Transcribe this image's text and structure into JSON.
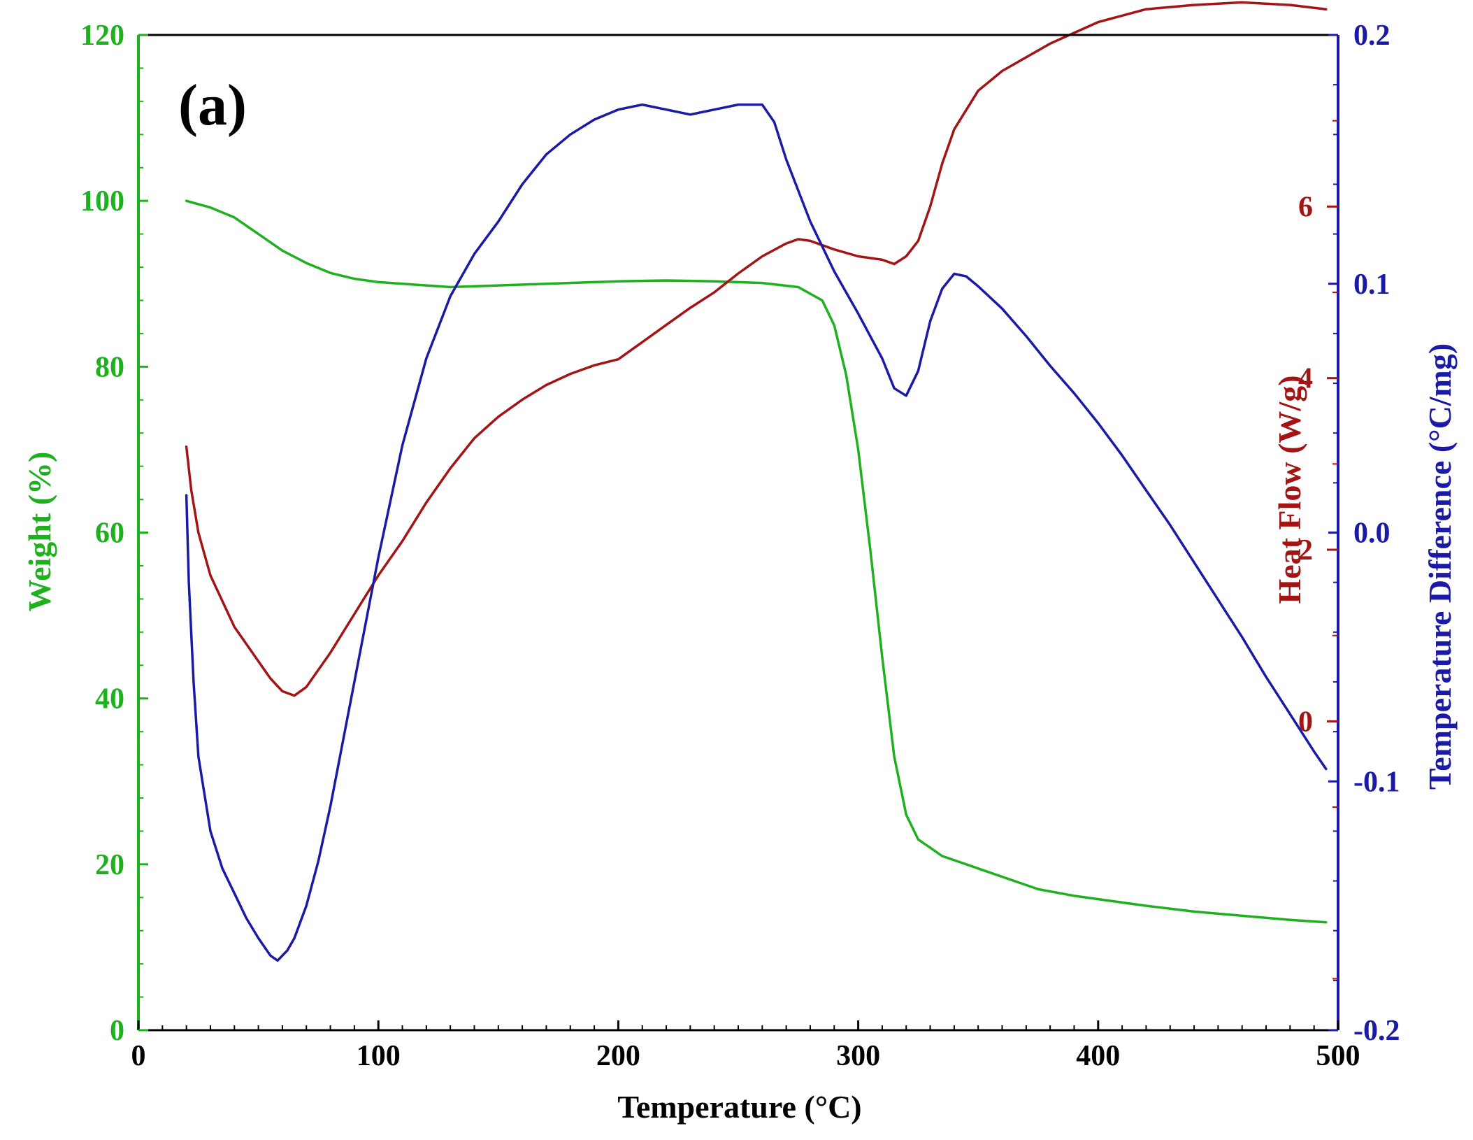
{
  "chart_data": {
    "type": "line",
    "panel_label": "(a)",
    "xlabel": "Temperature (°C)",
    "xlim": [
      0,
      500
    ],
    "x_ticks": [
      "0",
      "100",
      "200",
      "300",
      "400",
      "500"
    ],
    "grid": false,
    "colors": {
      "weight": "#1fb01f",
      "heat_flow": "#a31515",
      "temp_diff": "#1a1aa6",
      "frame": "#000000"
    },
    "axes": {
      "weight": {
        "label": "Weight (%)",
        "side": "left",
        "ylim": [
          0,
          120
        ],
        "ticks": [
          "0",
          "20",
          "40",
          "60",
          "80",
          "100",
          "120"
        ]
      },
      "heat_flow": {
        "label": "Heat Flow (W/g)",
        "side": "right-inner",
        "ylim": [
          -3.6,
          8.0
        ],
        "ticks": [
          "0",
          "2",
          "4",
          "6"
        ]
      },
      "temp_diff": {
        "label": "Temperature Difference (°C/mg)",
        "side": "right",
        "ylim": [
          -0.2,
          0.2
        ],
        "ticks": [
          "-0.2",
          "-0.1",
          "0.0",
          "0.1",
          "0.2"
        ]
      }
    },
    "series": [
      {
        "name": "Weight",
        "axis": "weight",
        "x": [
          20,
          30,
          40,
          50,
          60,
          70,
          80,
          90,
          100,
          110,
          120,
          130,
          150,
          170,
          190,
          200,
          220,
          240,
          260,
          275,
          285,
          290,
          295,
          300,
          305,
          310,
          315,
          320,
          325,
          330,
          335,
          340,
          350,
          360,
          375,
          390,
          400,
          420,
          440,
          460,
          480,
          495
        ],
        "y": [
          100,
          99.2,
          98,
          96,
          94,
          92.5,
          91.3,
          90.6,
          90.2,
          90,
          89.8,
          89.6,
          89.8,
          90,
          90.2,
          90.3,
          90.4,
          90.3,
          90.1,
          89.6,
          88,
          85,
          79,
          70,
          58,
          45,
          33,
          26,
          23,
          22,
          21,
          20.5,
          19.5,
          18.5,
          17,
          16.2,
          15.8,
          15,
          14.3,
          13.8,
          13.3,
          13
        ]
      },
      {
        "name": "Heat Flow",
        "axis": "heat_flow",
        "x": [
          20,
          22,
          25,
          30,
          40,
          50,
          55,
          60,
          65,
          70,
          80,
          90,
          100,
          110,
          120,
          130,
          140,
          150,
          160,
          170,
          180,
          190,
          200,
          210,
          220,
          230,
          240,
          250,
          260,
          270,
          275,
          280,
          290,
          300,
          310,
          315,
          320,
          325,
          330,
          335,
          340,
          350,
          360,
          380,
          400,
          420,
          440,
          460,
          480,
          495
        ],
        "y": [
          3.2,
          2.7,
          2.2,
          1.7,
          1.1,
          0.7,
          0.5,
          0.35,
          0.3,
          0.4,
          0.8,
          1.25,
          1.7,
          2.1,
          2.55,
          2.95,
          3.3,
          3.55,
          3.75,
          3.92,
          4.05,
          4.15,
          4.22,
          4.42,
          4.62,
          4.82,
          5.0,
          5.22,
          5.42,
          5.57,
          5.62,
          5.6,
          5.5,
          5.42,
          5.38,
          5.33,
          5.42,
          5.6,
          6.0,
          6.5,
          6.9,
          7.35,
          7.58,
          7.9,
          8.15,
          8.3,
          8.35,
          8.38,
          8.35,
          8.3
        ]
      },
      {
        "name": "Temperature Difference",
        "axis": "temp_diff",
        "x": [
          20,
          21,
          23,
          25,
          30,
          35,
          40,
          45,
          50,
          55,
          58,
          62,
          65,
          70,
          75,
          80,
          90,
          100,
          110,
          120,
          130,
          140,
          150,
          160,
          170,
          180,
          190,
          200,
          210,
          220,
          230,
          240,
          250,
          260,
          265,
          270,
          280,
          290,
          300,
          310,
          315,
          320,
          325,
          330,
          335,
          340,
          345,
          350,
          360,
          370,
          380,
          390,
          400,
          410,
          420,
          430,
          440,
          450,
          460,
          470,
          480,
          490,
          495
        ],
        "y": [
          0.015,
          -0.02,
          -0.06,
          -0.09,
          -0.12,
          -0.135,
          -0.145,
          -0.155,
          -0.163,
          -0.17,
          -0.172,
          -0.168,
          -0.163,
          -0.15,
          -0.132,
          -0.11,
          -0.06,
          -0.01,
          0.035,
          0.07,
          0.095,
          0.112,
          0.125,
          0.14,
          0.152,
          0.16,
          0.166,
          0.17,
          0.172,
          0.17,
          0.168,
          0.17,
          0.172,
          0.172,
          0.165,
          0.15,
          0.125,
          0.105,
          0.088,
          0.07,
          0.058,
          0.055,
          0.065,
          0.085,
          0.098,
          0.104,
          0.103,
          0.099,
          0.09,
          0.079,
          0.067,
          0.056,
          0.044,
          0.031,
          0.017,
          0.003,
          -0.012,
          -0.027,
          -0.042,
          -0.058,
          -0.073,
          -0.088,
          -0.095
        ]
      }
    ]
  }
}
